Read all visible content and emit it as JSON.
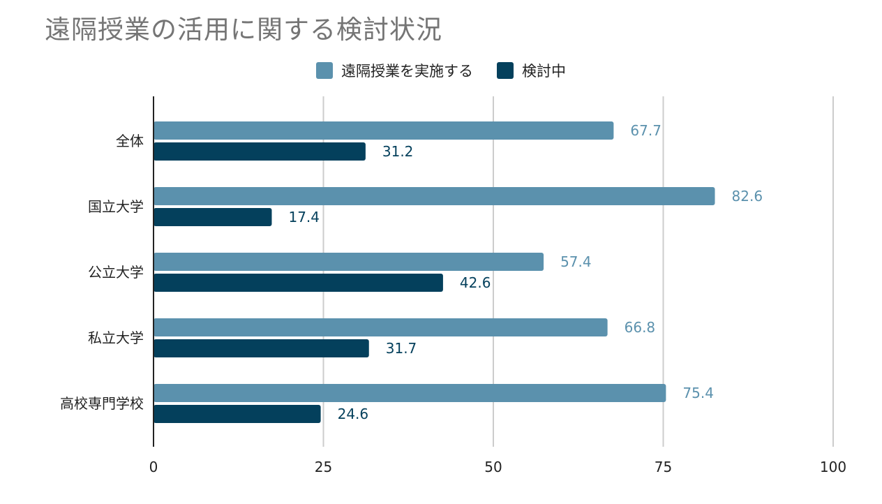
{
  "title": "遠隔授業の活用に関する検討状況",
  "colors": {
    "series1": "#5b91ad",
    "series2": "#04405c",
    "grid": "#cccccc",
    "axis": "#222222",
    "title": "#757575"
  },
  "legend": [
    {
      "label": "遠隔授業を実施する",
      "color": "#5b91ad"
    },
    {
      "label": "検討中",
      "color": "#04405c"
    }
  ],
  "chart_data": {
    "type": "bar",
    "orientation": "horizontal",
    "title": "遠隔授業の活用に関する検討状況",
    "categories": [
      "全体",
      "国立大学",
      "公立大学",
      "私立大学",
      "高校専門学校"
    ],
    "series": [
      {
        "name": "遠隔授業を実施する",
        "values": [
          67.7,
          82.6,
          57.4,
          66.8,
          75.4
        ],
        "labels": [
          "67.7",
          "82.6",
          "57.4",
          "66.8",
          "75.4"
        ]
      },
      {
        "name": "検討中",
        "values": [
          31.2,
          17.4,
          42.6,
          31.7,
          24.6
        ],
        "labels": [
          "31.2",
          "17.4",
          "42.6",
          "31.7",
          "24.6"
        ]
      }
    ],
    "xlim": [
      0,
      100
    ],
    "xticks": [
      "0",
      "25",
      "50",
      "75",
      "100"
    ],
    "grid": true,
    "legend_position": "top-center",
    "xlabel": "",
    "ylabel": ""
  }
}
